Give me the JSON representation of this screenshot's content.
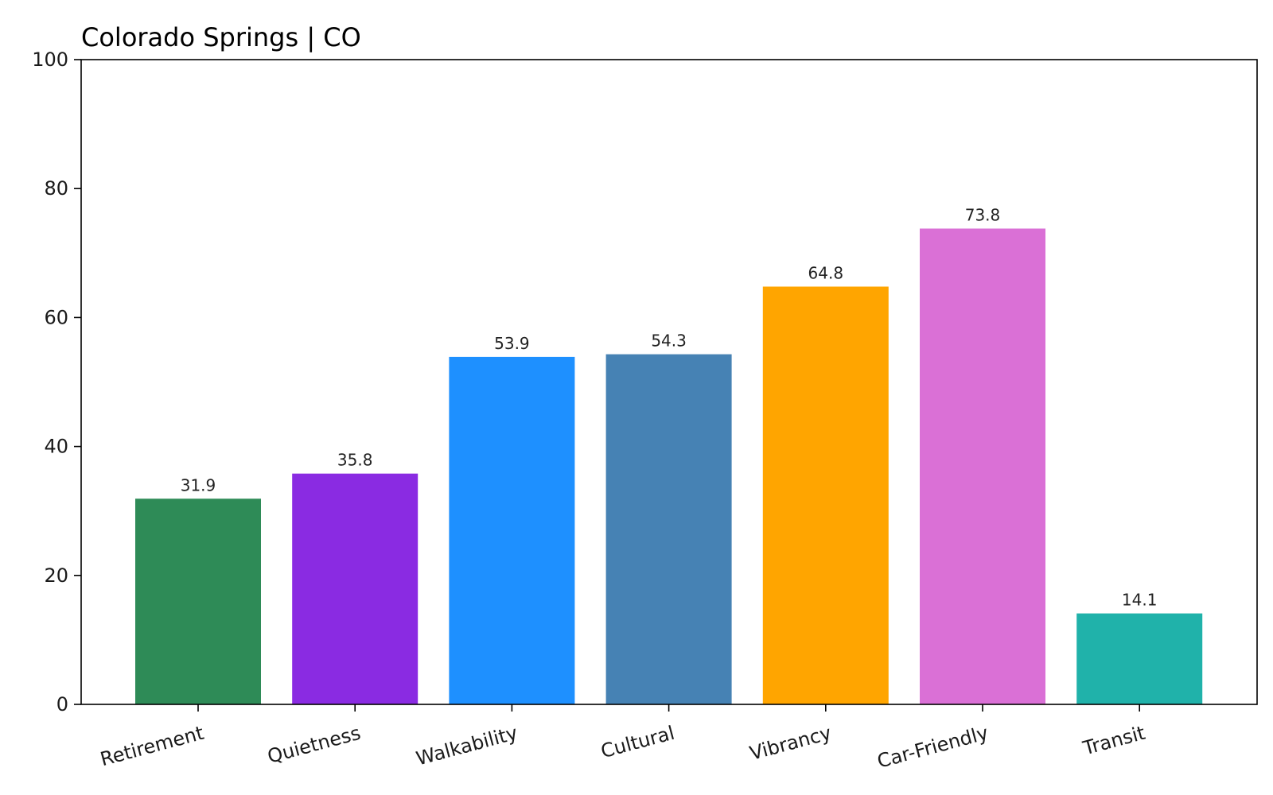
{
  "chart_data": {
    "type": "bar",
    "title": "Colorado Springs | CO",
    "xlabel": "",
    "ylabel": "",
    "categories": [
      "Retirement",
      "Quietness",
      "Walkability",
      "Cultural",
      "Vibrancy",
      "Car-Friendly",
      "Transit"
    ],
    "values": [
      31.9,
      35.8,
      53.9,
      54.3,
      64.8,
      73.8,
      14.1
    ],
    "value_labels": [
      "31.9",
      "35.8",
      "53.9",
      "54.3",
      "64.8",
      "73.8",
      "14.1"
    ],
    "colors": [
      "#2e8b57",
      "#8a2be2",
      "#1e90ff",
      "#4682b4",
      "#ffa500",
      "#da70d6",
      "#20b2aa"
    ],
    "ylim": [
      0,
      100
    ],
    "yticks": [
      0,
      20,
      40,
      60,
      80,
      100
    ],
    "ytick_labels": [
      "0",
      "20",
      "40",
      "60",
      "80",
      "100"
    ],
    "grid": false,
    "legend": "none"
  }
}
